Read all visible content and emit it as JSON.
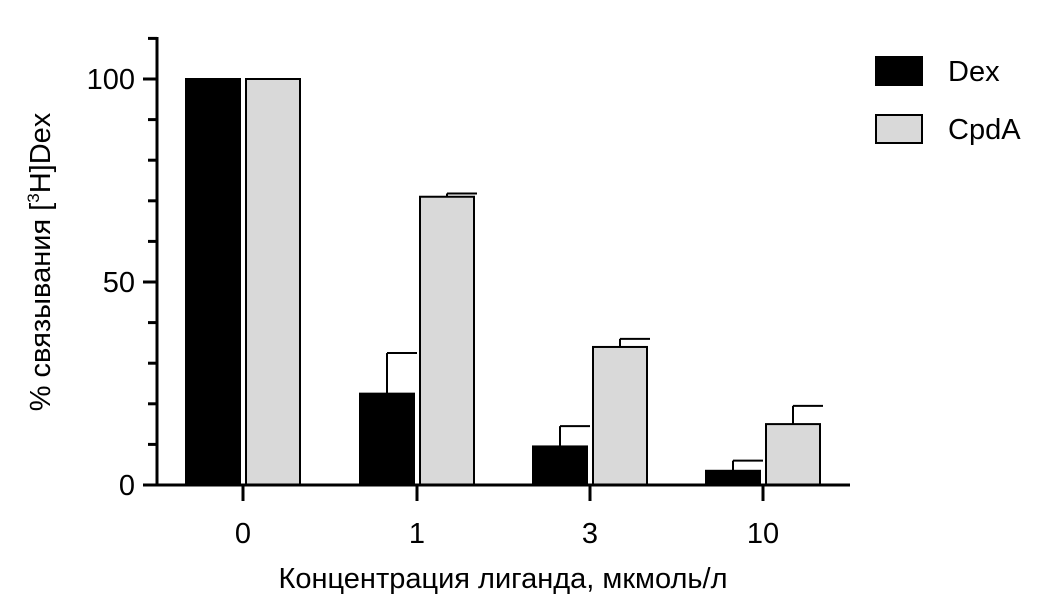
{
  "chart_data": {
    "type": "bar",
    "categories": [
      "0",
      "1",
      "3",
      "10"
    ],
    "series": [
      {
        "name": "Dex",
        "values": [
          100,
          22.5,
          9.5,
          3.5
        ],
        "errors": [
          0,
          10,
          5,
          2.5
        ],
        "color": "#000000"
      },
      {
        "name": "CpdA",
        "values": [
          100,
          71,
          34,
          15
        ],
        "errors": [
          0,
          0.8,
          2,
          4.5
        ],
        "color": "#d9d9d9"
      }
    ],
    "xlabel": "Концентрация лиганда, мкмоль/л",
    "ylabel": {
      "prefix": "% связывания [",
      "sup": "3",
      "suffix": "H]Dex"
    },
    "ylim": [
      0,
      110
    ],
    "yticks": [
      "0",
      "50",
      "100"
    ],
    "ytick_values": [
      0,
      50,
      100
    ],
    "minor_tick_step": 10,
    "legend_position": "top-right",
    "grid": false
  }
}
